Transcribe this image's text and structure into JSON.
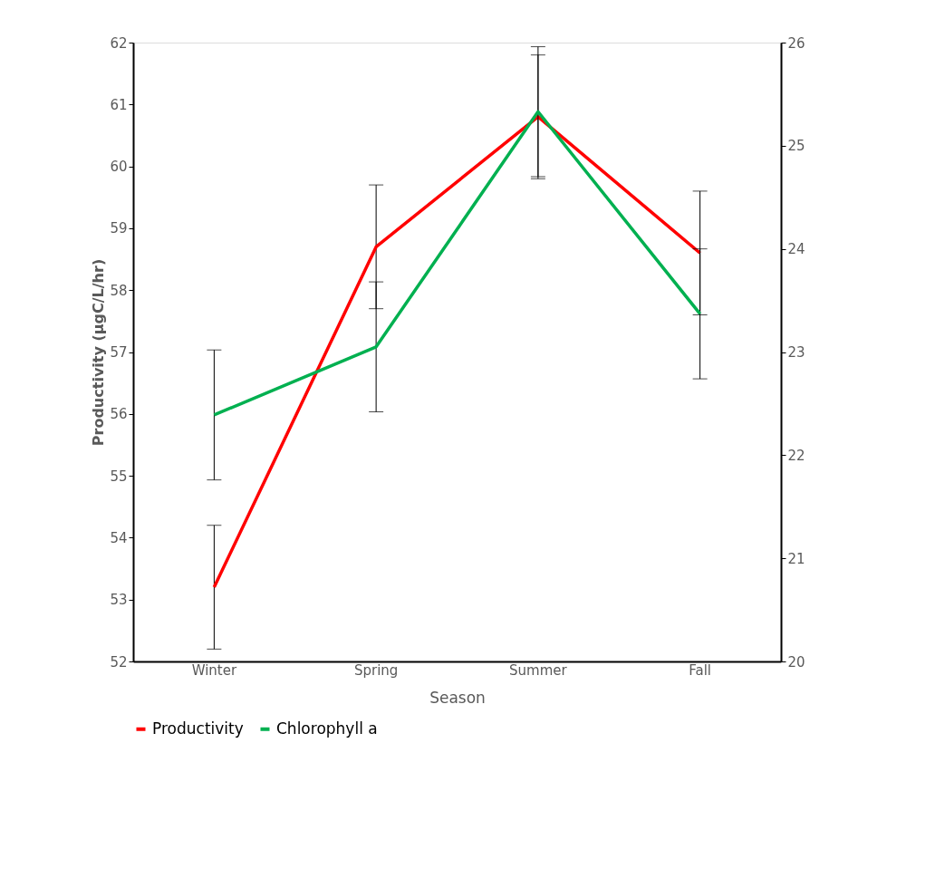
{
  "chart_data": {
    "type": "line",
    "xlabel": "Season",
    "ylabel": "Productivity (µgC/L/hr)",
    "categories": [
      "Winter",
      "Spring",
      "Summer",
      "Fall"
    ],
    "series": [
      {
        "name": "Productivity",
        "color": "#ff0000",
        "values": [
          53.2,
          58.7,
          60.8,
          58.6
        ],
        "errors": [
          1,
          1,
          1,
          1
        ]
      },
      {
        "name": "Chlorophyll a",
        "color": "#00b050",
        "values": [
          22.39,
          23.05,
          25.33,
          23.37
        ],
        "errors": [
          0.63,
          0.63,
          0.63,
          0.63
        ],
        "axis": "y2"
      }
    ],
    "ylim": [
      52,
      62
    ],
    "yticks": [
      52,
      53,
      54,
      55,
      56,
      57,
      58,
      59,
      60,
      61,
      62
    ],
    "y2lim": [
      20,
      26
    ],
    "y2ticks": [
      20,
      21,
      22,
      23,
      24,
      25,
      26
    ],
    "grid": false,
    "legend": "bottom",
    "marker": "none",
    "line_style": "solid"
  }
}
